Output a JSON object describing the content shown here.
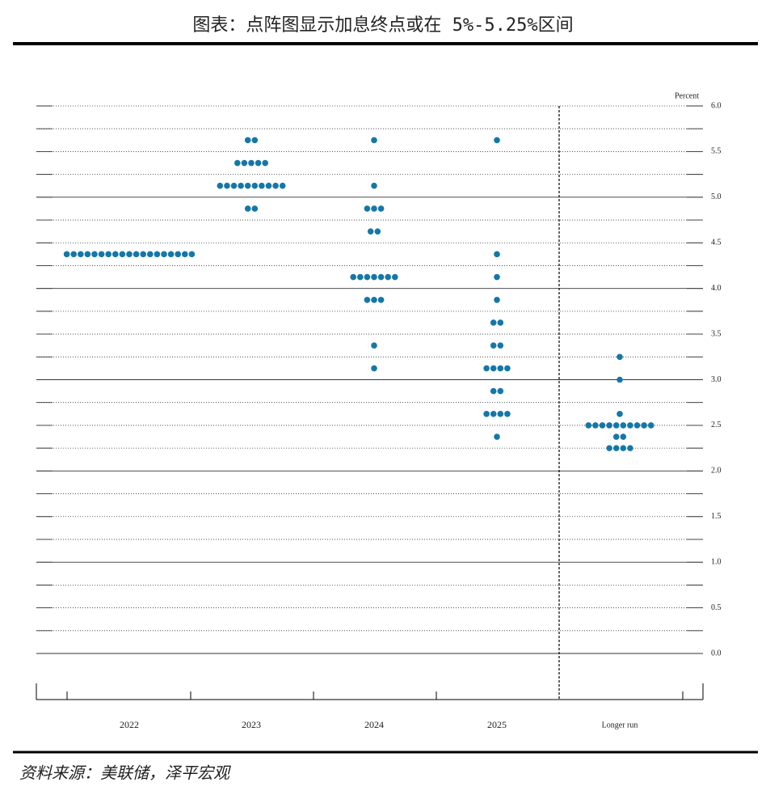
{
  "chart_data": {
    "type": "dotplot",
    "title": "图表：点阵图显示加息终点或在 5%-5.25%区间",
    "source": "资料来源：美联储，泽平宏观",
    "y_label": "Percent",
    "color": "#1577a8",
    "ylim": [
      0,
      6
    ],
    "yticks": [
      {
        "value": 0,
        "label": "0.0"
      },
      {
        "value": 0.5,
        "label": "0.5"
      },
      {
        "value": 1,
        "label": "1.0"
      },
      {
        "value": 1.5,
        "label": "1.5"
      },
      {
        "value": 2,
        "label": "2.0"
      },
      {
        "value": 2.5,
        "label": "2.5"
      },
      {
        "value": 3,
        "label": "3.0"
      },
      {
        "value": 3.5,
        "label": "3.5"
      },
      {
        "value": 4,
        "label": "4.0"
      },
      {
        "value": 4.5,
        "label": "4.5"
      },
      {
        "value": 5,
        "label": "5.0"
      },
      {
        "value": 5.5,
        "label": "5.5"
      },
      {
        "value": 6,
        "label": "6.0"
      }
    ],
    "minor_yticks": [
      0.25,
      0.75,
      1.25,
      1.75,
      2.25,
      2.75,
      3.25,
      3.75,
      4.25,
      4.75,
      5.25,
      5.75
    ],
    "columns": [
      {
        "category": "2022",
        "levels": [
          4.375
        ],
        "counts": [
          19
        ]
      },
      {
        "category": "2023",
        "levels": [
          5.625,
          5.375,
          5.125,
          4.875
        ],
        "counts": [
          2,
          5,
          10,
          2
        ]
      },
      {
        "category": "2024",
        "levels": [
          5.625,
          5.125,
          4.875,
          4.625,
          4.125,
          3.875,
          3.375,
          3.125
        ],
        "counts": [
          1,
          1,
          3,
          2,
          7,
          3,
          1,
          1
        ]
      },
      {
        "category": "2025",
        "levels": [
          5.625,
          4.375,
          4.125,
          3.875,
          3.625,
          3.375,
          3.125,
          2.875,
          2.625,
          2.375
        ],
        "counts": [
          1,
          1,
          1,
          1,
          2,
          2,
          4,
          2,
          4,
          1
        ]
      },
      {
        "category": "Longer run",
        "levels": [
          3.25,
          3,
          2.625,
          2.5,
          2.375,
          2.25
        ],
        "counts": [
          1,
          1,
          1,
          10,
          2,
          4
        ]
      }
    ]
  }
}
